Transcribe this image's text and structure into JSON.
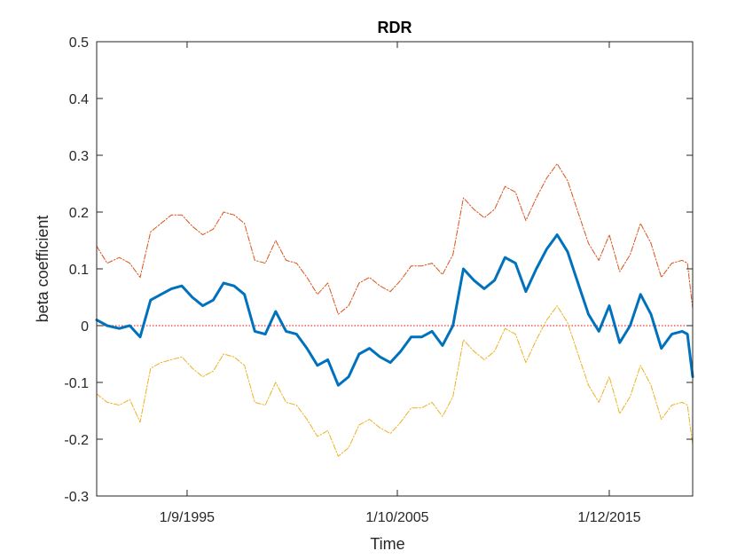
{
  "chart_data": {
    "type": "line",
    "title": "RDR",
    "xlabel": "Time",
    "ylabel": "beta coefficient",
    "ylim": [
      -0.3,
      0.5
    ],
    "xlim": [
      "1991-05-01",
      "2019-12-01"
    ],
    "grid": false,
    "yticks": [
      -0.3,
      -0.2,
      -0.1,
      0,
      0.1,
      0.2,
      0.3,
      0.4,
      0.5
    ],
    "ytick_labels": [
      "-0.3",
      "-0.2",
      "-0.1",
      "0",
      "0.1",
      "0.2",
      "0.3",
      "0.4",
      "0.5"
    ],
    "xticks": [
      "1995-09-01",
      "2005-10-01",
      "2015-12-01"
    ],
    "xtick_labels": [
      "1/9/1995",
      "1/10/2005",
      "1/12/2015"
    ],
    "x": [
      "1991-05-01",
      "1991-11-01",
      "1992-06-01",
      "1992-12-01",
      "1993-06-01",
      "1993-12-01",
      "1994-06-01",
      "1994-12-01",
      "1995-06-01",
      "1995-12-01",
      "1996-06-01",
      "1996-12-01",
      "1997-06-01",
      "1997-12-01",
      "1998-06-01",
      "1998-12-01",
      "1999-06-01",
      "1999-12-01",
      "2000-06-01",
      "2000-12-01",
      "2001-06-01",
      "2001-12-01",
      "2002-06-01",
      "2002-12-01",
      "2003-06-01",
      "2003-12-01",
      "2004-06-01",
      "2004-12-01",
      "2005-06-01",
      "2005-12-01",
      "2006-06-01",
      "2006-12-01",
      "2007-06-01",
      "2007-12-01",
      "2008-06-01",
      "2008-12-01",
      "2009-06-01",
      "2009-12-01",
      "2010-06-01",
      "2010-12-01",
      "2011-06-01",
      "2011-12-01",
      "2012-06-01",
      "2012-12-01",
      "2013-06-01",
      "2013-12-01",
      "2014-06-01",
      "2014-12-01",
      "2015-06-01",
      "2015-12-01",
      "2016-06-01",
      "2016-12-01",
      "2017-06-01",
      "2017-12-01",
      "2018-06-01",
      "2018-12-01",
      "2019-06-01",
      "2019-09-01",
      "2019-12-01"
    ],
    "series": [
      {
        "color": "#0072BD",
        "style": "solid",
        "values": [
          0.01,
          0.0,
          -0.005,
          0.0,
          -0.02,
          0.045,
          0.055,
          0.065,
          0.07,
          0.05,
          0.035,
          0.045,
          0.075,
          0.07,
          0.055,
          -0.01,
          -0.015,
          0.025,
          -0.01,
          -0.015,
          -0.04,
          -0.07,
          -0.06,
          -0.105,
          -0.09,
          -0.05,
          -0.04,
          -0.055,
          -0.065,
          -0.045,
          -0.02,
          -0.02,
          -0.01,
          -0.035,
          0.0,
          0.1,
          0.08,
          0.065,
          0.08,
          0.12,
          0.11,
          0.06,
          0.1,
          0.135,
          0.16,
          0.13,
          0.075,
          0.02,
          -0.01,
          0.035,
          -0.03,
          0.0,
          0.055,
          0.02,
          -0.04,
          -0.015,
          -0.01,
          -0.015,
          -0.09
        ]
      },
      {
        "color": "#D95319",
        "style": "dashdot",
        "values": [
          0.14,
          0.11,
          0.12,
          0.11,
          0.085,
          0.165,
          0.18,
          0.195,
          0.195,
          0.175,
          0.16,
          0.17,
          0.2,
          0.195,
          0.18,
          0.115,
          0.11,
          0.15,
          0.115,
          0.11,
          0.085,
          0.055,
          0.075,
          0.02,
          0.035,
          0.075,
          0.085,
          0.07,
          0.06,
          0.08,
          0.105,
          0.105,
          0.11,
          0.09,
          0.125,
          0.225,
          0.205,
          0.19,
          0.205,
          0.245,
          0.235,
          0.185,
          0.225,
          0.26,
          0.285,
          0.255,
          0.2,
          0.145,
          0.115,
          0.16,
          0.095,
          0.125,
          0.18,
          0.145,
          0.085,
          0.11,
          0.115,
          0.11,
          0.03
        ]
      },
      {
        "color": "#EDB120",
        "style": "dashdot",
        "values": [
          -0.12,
          -0.135,
          -0.14,
          -0.13,
          -0.17,
          -0.075,
          -0.065,
          -0.06,
          -0.055,
          -0.075,
          -0.09,
          -0.08,
          -0.05,
          -0.055,
          -0.07,
          -0.135,
          -0.14,
          -0.1,
          -0.135,
          -0.14,
          -0.165,
          -0.195,
          -0.185,
          -0.23,
          -0.215,
          -0.175,
          -0.165,
          -0.18,
          -0.19,
          -0.17,
          -0.145,
          -0.145,
          -0.135,
          -0.16,
          -0.125,
          -0.025,
          -0.045,
          -0.06,
          -0.045,
          -0.005,
          -0.015,
          -0.065,
          -0.025,
          0.01,
          0.035,
          0.005,
          -0.05,
          -0.105,
          -0.135,
          -0.09,
          -0.155,
          -0.125,
          -0.07,
          -0.105,
          -0.165,
          -0.14,
          -0.135,
          -0.14,
          -0.21
        ]
      }
    ],
    "reference_line": {
      "y": 0,
      "color": "#FF0000",
      "style": "dotted"
    }
  }
}
